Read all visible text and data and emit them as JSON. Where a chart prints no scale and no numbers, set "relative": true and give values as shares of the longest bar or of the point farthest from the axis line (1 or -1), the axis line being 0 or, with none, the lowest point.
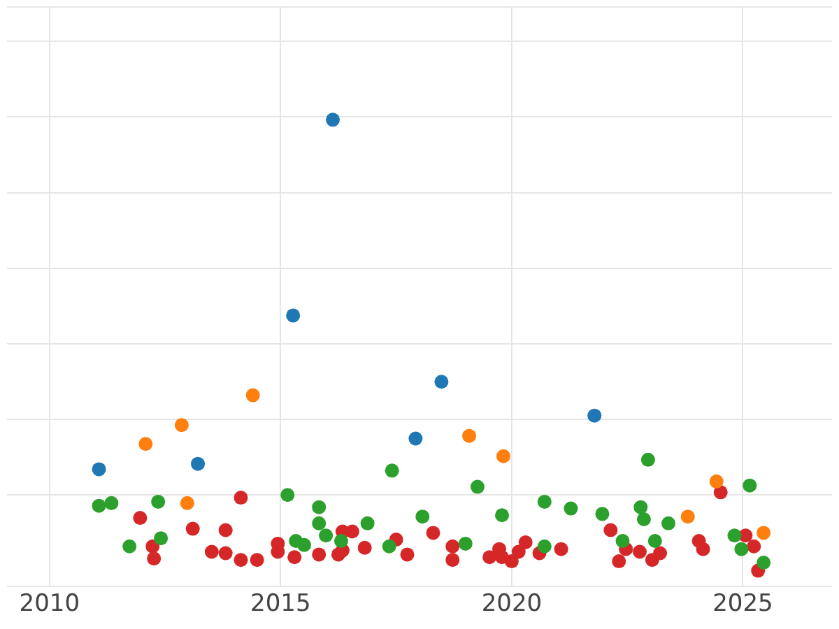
{
  "chart_data": {
    "type": "scatter",
    "relative": true,
    "grid": true,
    "marker": "circle",
    "xlim": [
      2009.08,
      2026.93
    ],
    "xticks": [
      2010,
      2015,
      2020,
      2025
    ],
    "series": [
      {
        "color": "#1f77b4",
        "x": [
          2011.07,
          2013.21,
          2015.27,
          2016.13,
          2017.92,
          2018.48,
          2021.79
        ],
        "values": [
          0.225,
          0.237,
          0.566,
          1,
          0.293,
          0.419,
          0.344
        ]
      },
      {
        "color": "#ff7f0e",
        "x": [
          2012.08,
          2012.86,
          2012.98,
          2014.4,
          2019.08,
          2019.82,
          2023.81,
          2024.43,
          2025.45
        ],
        "values": [
          0.281,
          0.323,
          0.15,
          0.389,
          0.299,
          0.254,
          0.12,
          0.198,
          0.084
        ]
      },
      {
        "color": "#2ca02c",
        "x": [
          2011.07,
          2011.34,
          2011.73,
          2012.35,
          2012.41,
          2015.15,
          2015.33,
          2015.51,
          2015.83,
          2015.83,
          2015.98,
          2016.31,
          2016.88,
          2017.35,
          2017.41,
          2018.07,
          2019.0,
          2019.26,
          2019.79,
          2020.71,
          2020.71,
          2021.28,
          2021.96,
          2022.4,
          2022.79,
          2022.86,
          2022.95,
          2023.1,
          2023.39,
          2024.82,
          2024.97,
          2025.15,
          2025.45
        ],
        "values": [
          0.144,
          0.15,
          0.054,
          0.153,
          0.072,
          0.168,
          0.066,
          0.057,
          0.141,
          0.105,
          0.078,
          0.066,
          0.105,
          0.054,
          0.222,
          0.12,
          0.06,
          0.186,
          0.123,
          0.153,
          0.054,
          0.138,
          0.126,
          0.066,
          0.141,
          0.114,
          0.246,
          0.066,
          0.105,
          0.078,
          0.048,
          0.189,
          0.018
        ]
      },
      {
        "color": "#d62728",
        "x": [
          2011.96,
          2012.23,
          2012.26,
          2013.1,
          2013.51,
          2013.81,
          2013.81,
          2014.14,
          2014.14,
          2014.49,
          2014.94,
          2014.94,
          2015.3,
          2015.83,
          2016.25,
          2016.34,
          2016.34,
          2016.55,
          2016.82,
          2017.5,
          2017.74,
          2018.3,
          2018.72,
          2018.72,
          2019.52,
          2019.73,
          2019.79,
          2020.0,
          2020.15,
          2020.3,
          2020.6,
          2021.07,
          2022.14,
          2022.32,
          2022.47,
          2022.77,
          2023.04,
          2023.21,
          2024.05,
          2024.14,
          2024.52,
          2025.06,
          2025.24,
          2025.33
        ],
        "values": [
          0.117,
          0.054,
          0.027,
          0.093,
          0.042,
          0.09,
          0.039,
          0.162,
          0.024,
          0.024,
          0.06,
          0.042,
          0.03,
          0.036,
          0.036,
          0.087,
          0.045,
          0.087,
          0.051,
          0.069,
          0.036,
          0.084,
          0.054,
          0.024,
          0.03,
          0.048,
          0.03,
          0.021,
          0.042,
          0.063,
          0.039,
          0.048,
          0.09,
          0.021,
          0.048,
          0.042,
          0.024,
          0.039,
          0.066,
          0.048,
          0.174,
          0.078,
          0.054,
          0
        ]
      }
    ]
  }
}
